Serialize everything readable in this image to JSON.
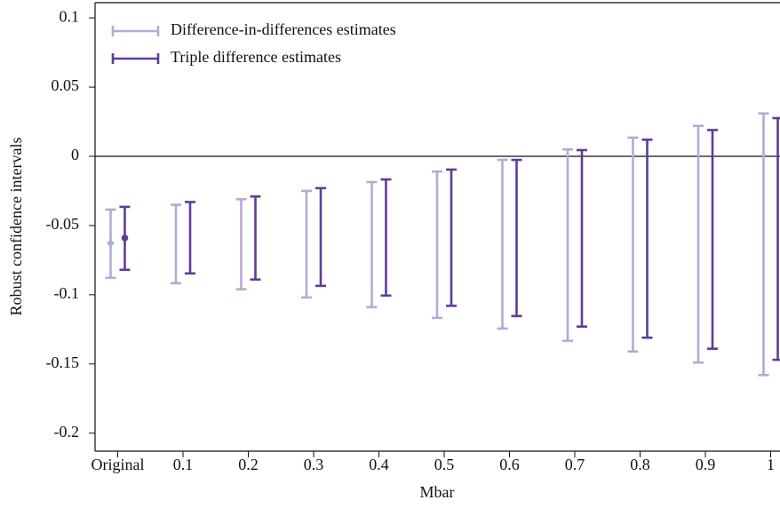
{
  "chart_data": {
    "type": "errorbar",
    "x_label": "Mbar",
    "y_label": "Robust confidence intervals",
    "categories": [
      "Original",
      "0.1",
      "0.2",
      "0.3",
      "0.4",
      "0.5",
      "0.6",
      "0.7",
      "0.8",
      "0.9",
      "1"
    ],
    "series": [
      {
        "name": "Difference-in-differences estimates",
        "color": "#b3aad6",
        "estimate": [
          -0.0628,
          null,
          null,
          null,
          null,
          null,
          null,
          null,
          null,
          null,
          null
        ],
        "lower": [
          -0.0878,
          -0.0917,
          -0.096,
          -0.102,
          -0.109,
          -0.1167,
          -0.1244,
          -0.1333,
          -0.141,
          -0.149,
          -0.158
        ],
        "upper": [
          -0.0385,
          -0.035,
          -0.031,
          -0.025,
          -0.0186,
          -0.011,
          -0.0026,
          0.005,
          0.0135,
          0.022,
          0.031
        ]
      },
      {
        "name": "Triple difference estimates",
        "color": "#5e3c99",
        "estimate": [
          -0.059,
          null,
          null,
          null,
          null,
          null,
          null,
          null,
          null,
          null,
          null
        ],
        "lower": [
          -0.082,
          -0.0846,
          -0.089,
          -0.0936,
          -0.1006,
          -0.108,
          -0.1154,
          -0.123,
          -0.131,
          -0.139,
          -0.147
        ],
        "upper": [
          -0.0365,
          -0.033,
          -0.029,
          -0.023,
          -0.0167,
          -0.0096,
          -0.0026,
          0.0045,
          0.012,
          0.019,
          0.0276
        ]
      }
    ],
    "ylim": [
      -0.213,
      0.111
    ],
    "yticks": [
      -0.2,
      -0.15,
      -0.1,
      -0.05,
      0,
      0.05,
      0.1
    ],
    "reference_line": 0,
    "legend": "upper left",
    "grid": false
  }
}
